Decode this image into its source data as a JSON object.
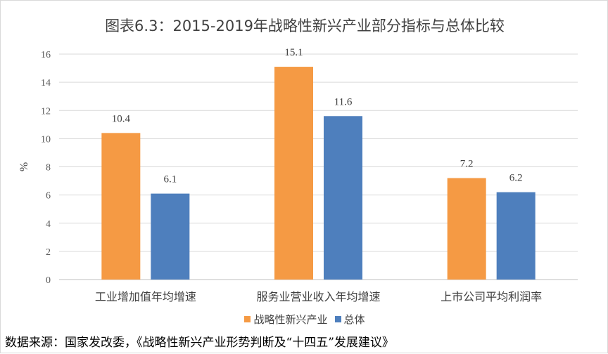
{
  "chart_data": {
    "type": "bar",
    "title": "图表6.3：2015-2019年战略性新兴产业部分指标与总体比较",
    "ylabel": "%",
    "xlabel": "",
    "ylim": [
      0,
      16
    ],
    "yticks": [
      0,
      2,
      4,
      6,
      8,
      10,
      12,
      14,
      16
    ],
    "grid": true,
    "legend_position": "bottom",
    "categories": [
      "工业增加值年均增速",
      "服务业营业收入年均增速",
      "上市公司平均利润率"
    ],
    "series": [
      {
        "name": "战略性新兴产业",
        "color": "#f59a44",
        "values": [
          10.4,
          15.1,
          7.2
        ]
      },
      {
        "name": "总体",
        "color": "#4e7fbd",
        "values": [
          6.1,
          11.6,
          6.2
        ]
      }
    ]
  },
  "source": "数据来源：国家发改委，《战略性新兴产业形势判断及“十四五”发展建议》"
}
